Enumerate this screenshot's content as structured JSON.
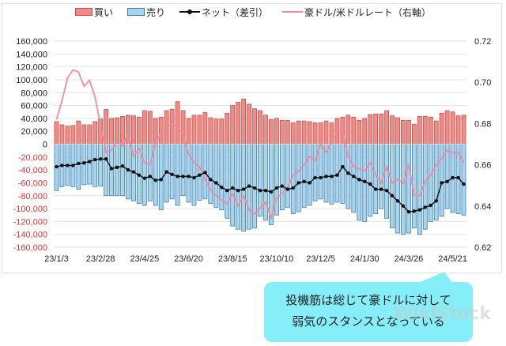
{
  "legend": {
    "buy": "買い",
    "sell": "売り",
    "net": "ネット（差引）",
    "rate": "豪ドル/米ドルレート（右軸）"
  },
  "colors": {
    "buy_fill": "#f28b86",
    "buy_stroke": "#c0504d",
    "sell_fill": "#a8d4f0",
    "sell_stroke": "#3d7fa8",
    "net_line": "#111111",
    "rate_line": "#ec8aa0",
    "neg_tick": "#d9373a",
    "callout": "#86eef9"
  },
  "callout": {
    "line1": "投機筋は総じて豪ドルに対して",
    "line2": "弱気のスタンスとなっている"
  },
  "watermark": "WikiStock",
  "chart_data": {
    "type": "bar",
    "title": "",
    "xlabel": "",
    "ylabel": "",
    "ylim": [
      -160000,
      160000
    ],
    "y2lim": [
      0.62,
      0.72
    ],
    "grid": true,
    "legend_position": "top",
    "yticks": [
      "160,000",
      "140,000",
      "120,000",
      "100,000",
      "80,000",
      "60,000",
      "40,000",
      "20,000",
      "0",
      "-20,000",
      "-40,000",
      "-60,000",
      "-80,000",
      "-100,000",
      "-120,000",
      "-140,000",
      "-160,000"
    ],
    "y2ticks": [
      "0.72",
      "0.70",
      "0.68",
      "0.66",
      "0.64",
      "0.62"
    ],
    "xtick_labels": [
      "23/1/3",
      "23/2/28",
      "23/4/25",
      "23/6/20",
      "23/8/15",
      "23/10/10",
      "23/12/5",
      "24/1/30",
      "24/3/26",
      "24/5/21"
    ],
    "xtick_every": 8,
    "series": [
      {
        "name": "買い",
        "kind": "bar",
        "values": [
          35000,
          30000,
          28000,
          29000,
          36000,
          30000,
          30000,
          35000,
          39000,
          54000,
          40000,
          41000,
          43000,
          45000,
          44000,
          42000,
          52000,
          51000,
          40000,
          42000,
          52000,
          54000,
          66000,
          52000,
          40000,
          45000,
          45000,
          49000,
          41000,
          39000,
          39000,
          48000,
          60000,
          65000,
          70000,
          62000,
          55000,
          52000,
          45000,
          38000,
          40000,
          37000,
          37000,
          33000,
          36000,
          36000,
          35000,
          33000,
          33000,
          36000,
          33000,
          40000,
          42000,
          45000,
          42000,
          37000,
          40000,
          46000,
          47000,
          47000,
          52000,
          44000,
          41000,
          37000,
          37000,
          31000,
          43000,
          43000,
          42000,
          36000,
          48000,
          52000,
          50000,
          44000,
          45000
        ]
      },
      {
        "name": "売り",
        "kind": "bar",
        "values": [
          -72000,
          -66000,
          -64000,
          -66000,
          -70000,
          -63000,
          -62000,
          -66000,
          -65000,
          -80000,
          -80000,
          -80000,
          -80000,
          -85000,
          -88000,
          -92000,
          -95000,
          -88000,
          -95000,
          -102000,
          -90000,
          -85000,
          -95000,
          -80000,
          -90000,
          -95000,
          -87000,
          -85000,
          -92000,
          -98000,
          -102000,
          -115000,
          -127000,
          -132000,
          -135000,
          -132000,
          -130000,
          -112000,
          -118000,
          -125000,
          -110000,
          -102000,
          -98000,
          -108000,
          -105000,
          -98000,
          -95000,
          -88000,
          -85000,
          -90000,
          -93000,
          -90000,
          -92000,
          -100000,
          -106000,
          -118000,
          -120000,
          -112000,
          -108000,
          -100000,
          -115000,
          -130000,
          -138000,
          -140000,
          -138000,
          -130000,
          -140000,
          -132000,
          -120000,
          -118000,
          -112000,
          -100000,
          -106000,
          -108000,
          -110000
        ]
      },
      {
        "name": "ネット（差引）",
        "kind": "line",
        "values": [
          -35000,
          -33000,
          -33000,
          -33000,
          -30000,
          -29000,
          -27000,
          -24000,
          -23000,
          -23000,
          -38000,
          -36000,
          -34000,
          -40000,
          -43000,
          -48000,
          -53000,
          -50000,
          -56000,
          -55000,
          -43000,
          -47000,
          -50000,
          -50000,
          -50000,
          -52000,
          -48000,
          -44000,
          -55000,
          -60000,
          -67000,
          -72000,
          -68000,
          -72000,
          -70000,
          -65000,
          -68000,
          -72000,
          -72000,
          -74000,
          -68000,
          -65000,
          -70000,
          -68000,
          -60000,
          -58000,
          -60000,
          -52000,
          -52000,
          -50000,
          -50000,
          -48000,
          -35000,
          -45000,
          -50000,
          -55000,
          -58000,
          -62000,
          -70000,
          -70000,
          -72000,
          -80000,
          -88000,
          -96000,
          -105000,
          -104000,
          -102000,
          -98000,
          -95000,
          -88000,
          -60000,
          -58000,
          -52000,
          -52000,
          -62000
        ]
      },
      {
        "name": "豪ドル/米ドルレート（右軸）",
        "kind": "line",
        "axis": "right",
        "values": [
          0.682,
          0.691,
          0.702,
          0.706,
          0.705,
          0.698,
          0.701,
          0.693,
          0.679,
          0.666,
          0.667,
          0.672,
          0.669,
          0.676,
          0.664,
          0.668,
          0.661,
          0.66,
          0.67,
          0.676,
          0.678,
          0.68,
          0.678,
          0.675,
          0.665,
          0.661,
          0.659,
          0.653,
          0.648,
          0.645,
          0.643,
          0.641,
          0.646,
          0.64,
          0.645,
          0.638,
          0.636,
          0.639,
          0.642,
          0.634,
          0.644,
          0.646,
          0.649,
          0.655,
          0.657,
          0.66,
          0.664,
          0.662,
          0.67,
          0.666,
          0.671,
          0.676,
          0.677,
          0.664,
          0.659,
          0.658,
          0.657,
          0.661,
          0.655,
          0.651,
          0.659,
          0.651,
          0.653,
          0.651,
          0.66,
          0.645,
          0.645,
          0.652,
          0.655,
          0.66,
          0.663,
          0.667,
          0.666,
          0.666,
          0.661
        ]
      }
    ]
  }
}
